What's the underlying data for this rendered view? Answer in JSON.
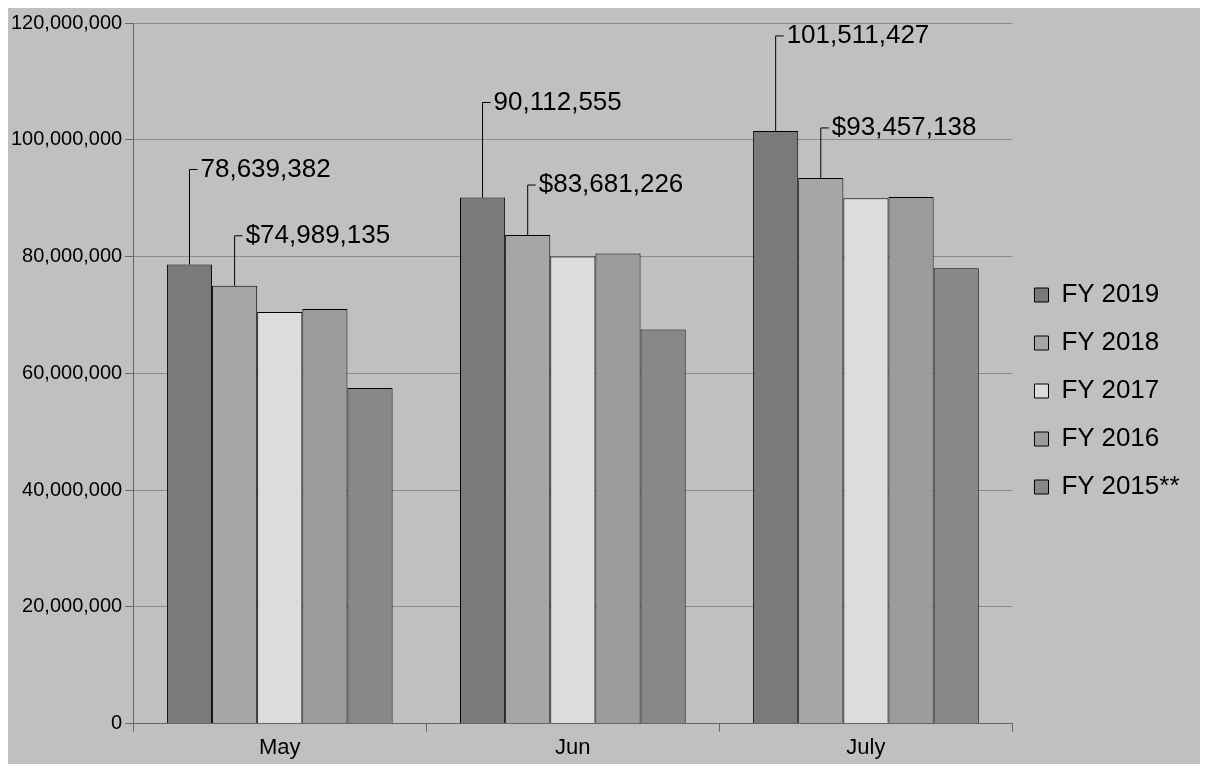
{
  "chart_data": {
    "type": "bar",
    "categories": [
      "May",
      "Jun",
      "July"
    ],
    "series": [
      {
        "name": "FY 2019",
        "color": "#7a7a7a",
        "values": [
          78639382,
          90112555,
          101511427
        ],
        "value_labels": [
          "78,639,382",
          "90,112,555",
          "101,511,427"
        ]
      },
      {
        "name": "FY 2018",
        "color": "#a6a6a6",
        "values": [
          74989135,
          83681226,
          93457138
        ],
        "value_labels": [
          "$74,989,135",
          "$83,681,226",
          "$93,457,138"
        ]
      },
      {
        "name": "FY 2017",
        "color": "#dcdcdc",
        "values": [
          70500000,
          80000000,
          90000000
        ]
      },
      {
        "name": "FY 2016",
        "color": "#9c9c9c",
        "values": [
          71000000,
          80500000,
          90200000
        ]
      },
      {
        "name": "FY 2015**",
        "color": "#888888",
        "values": [
          57500000,
          67500000,
          78000000
        ]
      }
    ],
    "ylim": [
      0,
      120000000
    ],
    "yticks": [
      {
        "value": 0,
        "label": "0"
      },
      {
        "value": 20000000,
        "label": "20,000,000"
      },
      {
        "value": 40000000,
        "label": "40,000,000"
      },
      {
        "value": 60000000,
        "label": "60,000,000"
      },
      {
        "value": 80000000,
        "label": "80,000,000"
      },
      {
        "value": 100000000,
        "label": "100,000,000"
      },
      {
        "value": 120000000,
        "label": "120,000,000"
      }
    ],
    "grid": "y",
    "legend": "right"
  }
}
